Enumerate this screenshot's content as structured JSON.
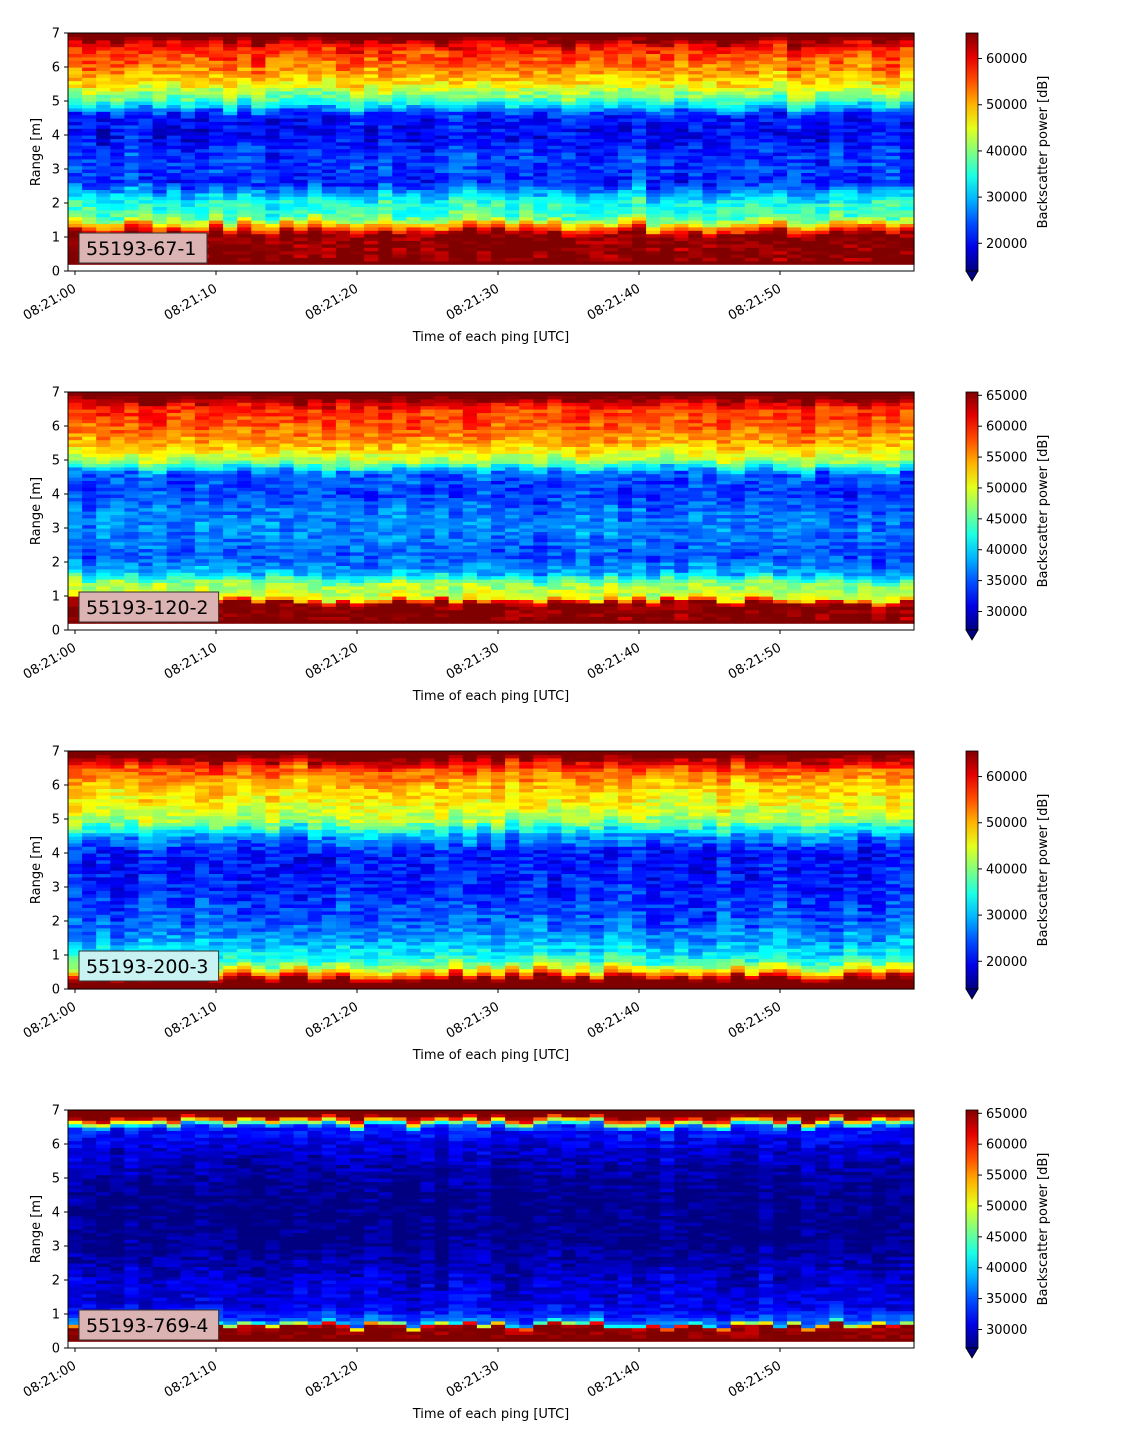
{
  "chart_data": [
    {
      "type": "heatmap",
      "label": "55193-67-1",
      "label_bg": "#dcb3b3",
      "xlabel": "Time of each ping [UTC]",
      "ylabel": "Range [m]",
      "ylim": [
        0,
        7
      ],
      "yticks": [
        "0",
        "1",
        "2",
        "3",
        "4",
        "5",
        "6",
        "7"
      ],
      "xticks": [
        "08:21:00",
        "08:21:10",
        "08:21:20",
        "08:21:30",
        "08:21:40",
        "08:21:50"
      ],
      "colorbar": {
        "label": "Backscatter power [dB]",
        "min": 14000,
        "max": 65535,
        "extend": "min",
        "ticks": [
          "20000",
          "30000",
          "40000",
          "50000",
          "60000"
        ],
        "tick_values": [
          20000,
          30000,
          40000,
          50000,
          60000
        ]
      },
      "colormap": "jet",
      "profile": [
        {
          "range": 0.2,
          "value": 65535
        },
        {
          "range": 1.1,
          "value": 65535
        },
        {
          "range": 1.25,
          "value": 55000
        },
        {
          "range": 1.6,
          "value": 37000
        },
        {
          "range": 2.0,
          "value": 35000
        },
        {
          "range": 2.3,
          "value": 30000
        },
        {
          "range": 2.6,
          "value": 22000
        },
        {
          "range": 3.0,
          "value": 24000
        },
        {
          "range": 3.5,
          "value": 23000
        },
        {
          "range": 4.0,
          "value": 20000
        },
        {
          "range": 4.6,
          "value": 22000
        },
        {
          "range": 5.0,
          "value": 36000
        },
        {
          "range": 5.5,
          "value": 47000
        },
        {
          "range": 6.0,
          "value": 53000
        },
        {
          "range": 6.5,
          "value": 57000
        },
        {
          "range": 6.85,
          "value": 65535
        },
        {
          "range": 7.0,
          "value": 65535
        }
      ],
      "variability": 5000
    },
    {
      "type": "heatmap",
      "label": "55193-120-2",
      "label_bg": "#dcb3b3",
      "xlabel": "Time of each ping [UTC]",
      "ylabel": "Range [m]",
      "ylim": [
        0,
        7
      ],
      "yticks": [
        "0",
        "1",
        "2",
        "3",
        "4",
        "5",
        "6",
        "7"
      ],
      "xticks": [
        "08:21:00",
        "08:21:10",
        "08:21:20",
        "08:21:30",
        "08:21:40",
        "08:21:50"
      ],
      "colorbar": {
        "label": "Backscatter power [dB]",
        "min": 27000,
        "max": 65535,
        "extend": "min",
        "ticks": [
          "30000",
          "35000",
          "40000",
          "45000",
          "50000",
          "55000",
          "60000",
          "65000"
        ],
        "tick_values": [
          30000,
          35000,
          40000,
          45000,
          50000,
          55000,
          60000,
          65000
        ]
      },
      "colormap": "jet",
      "profile": [
        {
          "range": 0.2,
          "value": 65535
        },
        {
          "range": 0.8,
          "value": 65535
        },
        {
          "range": 0.95,
          "value": 50000
        },
        {
          "range": 1.4,
          "value": 47000
        },
        {
          "range": 1.7,
          "value": 38000
        },
        {
          "range": 2.2,
          "value": 35000
        },
        {
          "range": 2.6,
          "value": 36000
        },
        {
          "range": 3.0,
          "value": 37000
        },
        {
          "range": 3.5,
          "value": 36000
        },
        {
          "range": 4.0,
          "value": 34000
        },
        {
          "range": 4.6,
          "value": 35000
        },
        {
          "range": 5.0,
          "value": 48000
        },
        {
          "range": 5.5,
          "value": 54000
        },
        {
          "range": 6.0,
          "value": 57000
        },
        {
          "range": 6.5,
          "value": 59000
        },
        {
          "range": 6.85,
          "value": 65535
        },
        {
          "range": 7.0,
          "value": 65535
        }
      ],
      "variability": 3500
    },
    {
      "type": "heatmap",
      "label": "55193-200-3",
      "label_bg": "#c9f2f2",
      "xlabel": "Time of each ping [UTC]",
      "ylabel": "Range [m]",
      "ylim": [
        0,
        7
      ],
      "yticks": [
        "0",
        "1",
        "2",
        "3",
        "4",
        "5",
        "6",
        "7"
      ],
      "xticks": [
        "08:21:00",
        "08:21:10",
        "08:21:20",
        "08:21:30",
        "08:21:40",
        "08:21:50"
      ],
      "colorbar": {
        "label": "Backscatter power [dB]",
        "min": 14000,
        "max": 65535,
        "extend": "min",
        "ticks": [
          "20000",
          "30000",
          "40000",
          "50000",
          "60000"
        ],
        "tick_values": [
          20000,
          30000,
          40000,
          50000,
          60000
        ]
      },
      "colormap": "jet",
      "profile": [
        {
          "range": 0.1,
          "value": 65535
        },
        {
          "range": 0.3,
          "value": 65535
        },
        {
          "range": 0.5,
          "value": 50000
        },
        {
          "range": 0.8,
          "value": 37000
        },
        {
          "range": 1.2,
          "value": 31000
        },
        {
          "range": 2.0,
          "value": 25000
        },
        {
          "range": 3.0,
          "value": 22000
        },
        {
          "range": 4.0,
          "value": 21000
        },
        {
          "range": 4.5,
          "value": 28000
        },
        {
          "range": 5.0,
          "value": 42000
        },
        {
          "range": 5.5,
          "value": 46000
        },
        {
          "range": 6.0,
          "value": 49000
        },
        {
          "range": 6.5,
          "value": 55000
        },
        {
          "range": 6.85,
          "value": 65535
        },
        {
          "range": 7.0,
          "value": 65535
        }
      ],
      "variability": 5000
    },
    {
      "type": "heatmap",
      "label": "55193-769-4",
      "label_bg": "#dcb3b3",
      "xlabel": "Time of each ping [UTC]",
      "ylabel": "Range [m]",
      "ylim": [
        0,
        7
      ],
      "yticks": [
        "0",
        "1",
        "2",
        "3",
        "4",
        "5",
        "6",
        "7"
      ],
      "xticks": [
        "08:21:00",
        "08:21:10",
        "08:21:20",
        "08:21:30",
        "08:21:40",
        "08:21:50"
      ],
      "colorbar": {
        "label": "Backscatter power [dB]",
        "min": 27000,
        "max": 65535,
        "extend": "min",
        "ticks": [
          "30000",
          "35000",
          "40000",
          "45000",
          "50000",
          "55000",
          "60000",
          "65000"
        ],
        "tick_values": [
          30000,
          35000,
          40000,
          45000,
          50000,
          55000,
          60000,
          65000
        ]
      },
      "colormap": "jet",
      "profile": [
        {
          "range": 0.2,
          "value": 65535
        },
        {
          "range": 0.62,
          "value": 65535
        },
        {
          "range": 0.75,
          "value": 36000
        },
        {
          "range": 1.2,
          "value": 31000
        },
        {
          "range": 2.0,
          "value": 30000
        },
        {
          "range": 3.0,
          "value": 27500
        },
        {
          "range": 4.0,
          "value": 27000
        },
        {
          "range": 5.0,
          "value": 28000
        },
        {
          "range": 6.0,
          "value": 30500
        },
        {
          "range": 6.5,
          "value": 33000
        },
        {
          "range": 6.8,
          "value": 65535
        },
        {
          "range": 7.0,
          "value": 65535
        }
      ],
      "variability": 3000
    }
  ]
}
